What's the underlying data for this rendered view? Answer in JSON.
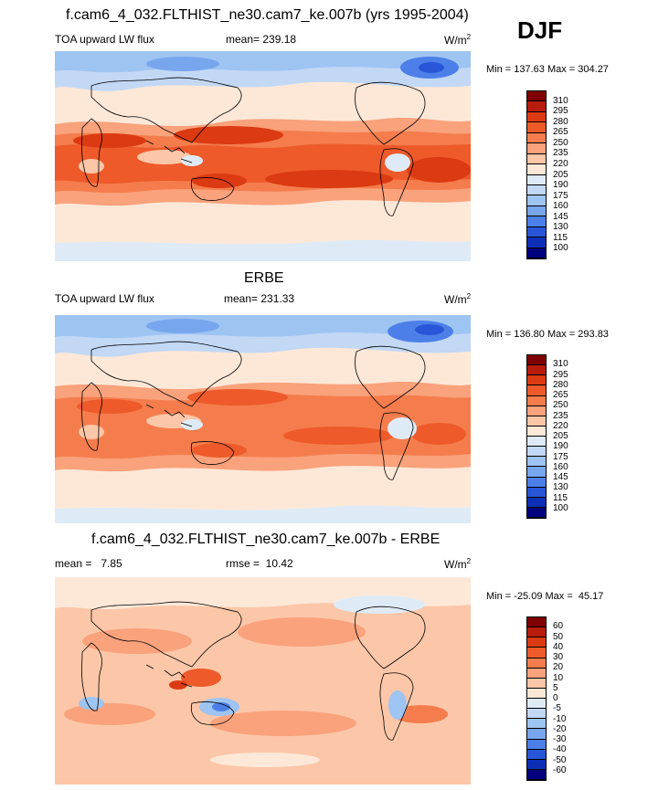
{
  "season": "DJF",
  "panels": [
    {
      "title": "f.cam6_4_032.FLTHIST_ne30.cam7_ke.007b (yrs 1995-2004)",
      "variable": "TOA upward LW flux",
      "stat1": "mean= 239.18",
      "stat2": "",
      "units": "W/m",
      "units_sup": "2",
      "minmax": "Min = 137.63 Max = 304.27",
      "levels": [
        "310",
        "295",
        "280",
        "265",
        "250",
        "235",
        "220",
        "205",
        "190",
        "175",
        "160",
        "145",
        "130",
        "115",
        "100"
      ],
      "colors": [
        "#7f0000",
        "#b71c0c",
        "#dc3a12",
        "#ee5a2a",
        "#f57d4d",
        "#f9a27c",
        "#fcc7a8",
        "#fde8d8",
        "#deebf7",
        "#c2d8f5",
        "#9ec4f2",
        "#78a6ee",
        "#4d7fe8",
        "#2956d8",
        "#0d2fb8",
        "#00007f"
      ]
    },
    {
      "title": "ERBE",
      "variable": "TOA upward LW flux",
      "stat1": "mean= 231.33",
      "stat2": "",
      "units": "W/m",
      "units_sup": "2",
      "minmax": "Min = 136.80 Max = 293.83",
      "levels": [
        "310",
        "295",
        "280",
        "265",
        "250",
        "235",
        "220",
        "205",
        "190",
        "175",
        "160",
        "145",
        "130",
        "115",
        "100"
      ],
      "colors": [
        "#7f0000",
        "#b71c0c",
        "#dc3a12",
        "#ee5a2a",
        "#f57d4d",
        "#f9a27c",
        "#fcc7a8",
        "#fde8d8",
        "#deebf7",
        "#c2d8f5",
        "#9ec4f2",
        "#78a6ee",
        "#4d7fe8",
        "#2956d8",
        "#0d2fb8",
        "#00007f"
      ]
    },
    {
      "title": "f.cam6_4_032.FLTHIST_ne30.cam7_ke.007b - ERBE",
      "variable": "",
      "stat1": "mean =   7.85",
      "stat2": "rmse =  10.42",
      "units": "W/m",
      "units_sup": "2",
      "minmax": "Min = -25.09 Max =  45.17",
      "levels": [
        "60",
        "50",
        "40",
        "30",
        "20",
        "10",
        "5",
        "0",
        "-5",
        "-10",
        "-20",
        "-30",
        "-40",
        "-50",
        "-60"
      ],
      "colors": [
        "#7f0000",
        "#b71c0c",
        "#dc3a12",
        "#ee5a2a",
        "#f57d4d",
        "#f9a27c",
        "#fcc7a8",
        "#fde8d8",
        "#deebf7",
        "#c2d8f5",
        "#9ec4f2",
        "#78a6ee",
        "#4d7fe8",
        "#2956d8",
        "#0d2fb8",
        "#00007f"
      ]
    }
  ]
}
